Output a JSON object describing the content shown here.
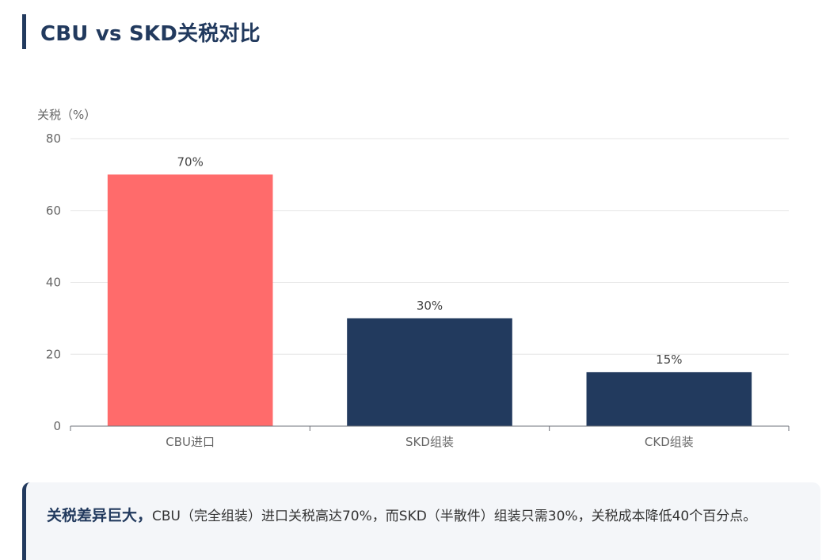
{
  "title": "CBU vs SKD关税对比",
  "chart_data": {
    "type": "bar",
    "ylabel": "关税（%）",
    "ylim": [
      0,
      80
    ],
    "yticks": [
      0,
      20,
      40,
      60,
      80
    ],
    "categories": [
      "CBU进口",
      "SKD组装",
      "CKD组装"
    ],
    "values": [
      70,
      30,
      15
    ],
    "data_labels": [
      "70%",
      "30%",
      "15%"
    ],
    "colors": [
      "#ff6b6b",
      "#223a5e",
      "#223a5e"
    ],
    "grid": true
  },
  "note": {
    "highlight": "关税差异巨大，",
    "text": "CBU（完全组装）进口关税高达70%，而SKD（半散件）组装只需30%，关税成本降低40个百分点。"
  }
}
